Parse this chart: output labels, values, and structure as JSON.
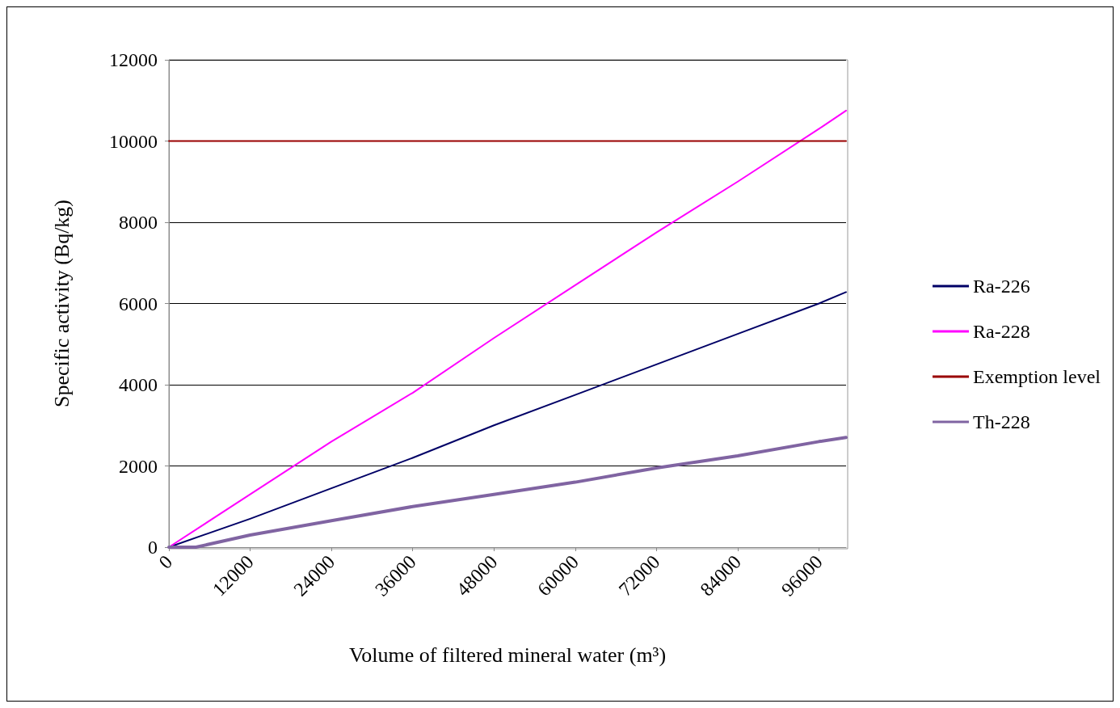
{
  "chart_data": {
    "type": "line",
    "xlabel": "Volume of filtered mineral water (m³)",
    "ylabel": "Specific activity (Bq/kg)",
    "xlim": [
      0,
      100000
    ],
    "xticks": [
      0,
      12000,
      24000,
      36000,
      48000,
      60000,
      72000,
      84000,
      96000
    ],
    "ylim": [
      0,
      12000
    ],
    "yticks": [
      0,
      2000,
      4000,
      6000,
      8000,
      10000,
      12000
    ],
    "grid": "y",
    "legend": "right",
    "marker": "none",
    "series": [
      {
        "name": "Ra-226",
        "color": "#000066",
        "x": [
          0,
          12000,
          24000,
          36000,
          48000,
          60000,
          72000,
          84000,
          96000,
          100000
        ],
        "values": [
          0,
          700,
          1450,
          2200,
          3000,
          3750,
          4500,
          5250,
          6000,
          6280
        ]
      },
      {
        "name": "Ra-228",
        "color": "#ff00ff",
        "x": [
          0,
          12000,
          24000,
          36000,
          48000,
          60000,
          72000,
          84000,
          96000,
          100000
        ],
        "values": [
          0,
          1300,
          2600,
          3800,
          5150,
          6450,
          7750,
          9000,
          10300,
          10750
        ]
      },
      {
        "name": "Exemption level",
        "color": "#990000",
        "x": [
          0,
          100000
        ],
        "values": [
          10000,
          10000
        ]
      },
      {
        "name": "Th-228",
        "color": "#8064a2",
        "x": [
          0,
          4000,
          12000,
          24000,
          36000,
          48000,
          60000,
          72000,
          84000,
          96000,
          100000
        ],
        "values": [
          0,
          0,
          300,
          650,
          1000,
          1300,
          1600,
          1950,
          2250,
          2600,
          2700
        ]
      }
    ]
  }
}
